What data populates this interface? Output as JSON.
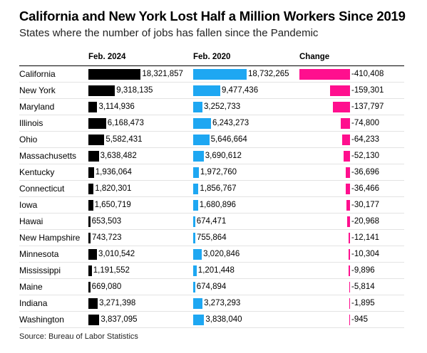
{
  "title": "California and New York Lost Half a Million Workers Since 2019",
  "subtitle": "States where the number of jobs has fallen since the Pandemic",
  "source": "Source: Bureau of Labor Statistics",
  "colors": {
    "feb2024": "#000000",
    "feb2020": "#1ea7f2",
    "change": "#ff0f8e"
  },
  "chart_data": {
    "type": "bar",
    "columns": [
      "Feb. 2024",
      "Feb. 2020",
      "Change"
    ],
    "categories": [
      "California",
      "New York",
      "Maryland",
      "Illinois",
      "Ohio",
      "Massachusetts",
      "Kentucky",
      "Connecticut",
      "Iowa",
      "Hawai",
      "New Hampshire",
      "Minnesota",
      "Mississippi",
      "Maine",
      "Indiana",
      "Washington"
    ],
    "series": [
      {
        "name": "Feb. 2024",
        "values": [
          18321857,
          9318135,
          3114936,
          6168473,
          5582431,
          3638482,
          1936064,
          1820301,
          1650719,
          653503,
          743723,
          3010542,
          1191552,
          669080,
          3271398,
          3837095
        ],
        "labels": [
          "18,321,857",
          "9,318,135",
          "3,114,936",
          "6,168,473",
          "5,582,431",
          "3,638,482",
          "1,936,064",
          "1,820,301",
          "1,650,719",
          "653,503",
          "743,723",
          "3,010,542",
          "1,191,552",
          "669,080",
          "3,271,398",
          "3,837,095"
        ]
      },
      {
        "name": "Feb. 2020",
        "values": [
          18732265,
          9477436,
          3252733,
          6243273,
          5646664,
          3690612,
          1972760,
          1856767,
          1680896,
          674471,
          755864,
          3020846,
          1201448,
          674894,
          3273293,
          3838040
        ],
        "labels": [
          "18,732,265",
          "9,477,436",
          "3,252,733",
          "6,243,273",
          "5,646,664",
          "3,690,612",
          "1,972,760",
          "1,856,767",
          "1,680,896",
          "674,471",
          "755,864",
          "3,020,846",
          "1,201,448",
          "674,894",
          "3,273,293",
          "3,838,040"
        ]
      },
      {
        "name": "Change",
        "values": [
          -410408,
          -159301,
          -137797,
          -74800,
          -64233,
          -52130,
          -36696,
          -36466,
          -30177,
          -20968,
          -12141,
          -10304,
          -9896,
          -5814,
          -1895,
          -945
        ],
        "labels": [
          "-410,408",
          "-159,301",
          "-137,797",
          "-74,800",
          "-64,233",
          "-52,130",
          "-36,696",
          "-36,466",
          "-30,177",
          "-20,968",
          "-12,141",
          "-10,304",
          "-9,896",
          "-5,814",
          "-1,895",
          "-945"
        ]
      }
    ]
  }
}
